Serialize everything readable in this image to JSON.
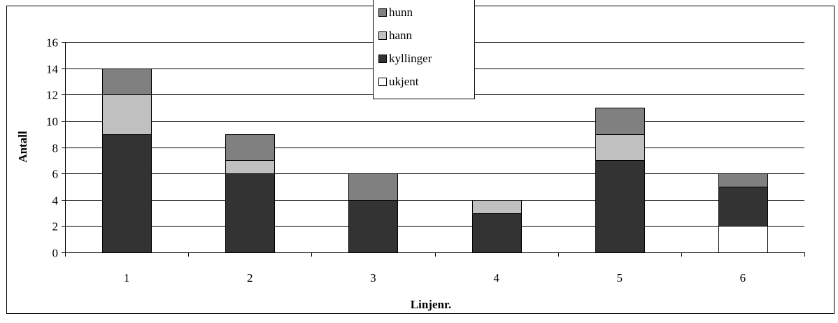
{
  "chart_data": {
    "type": "bar",
    "stacked": true,
    "categories": [
      "1",
      "2",
      "3",
      "4",
      "5",
      "6"
    ],
    "series": [
      {
        "name": "ukjent",
        "values": [
          0,
          0,
          0,
          0,
          0,
          2
        ],
        "color": "#ffffff"
      },
      {
        "name": "kyllinger",
        "values": [
          9,
          6,
          4,
          3,
          7,
          3
        ],
        "color": "#333333"
      },
      {
        "name": "hann",
        "values": [
          3,
          1,
          0,
          1,
          2,
          0
        ],
        "color": "#c0c0c0"
      },
      {
        "name": "hunn",
        "values": [
          2,
          2,
          2,
          0,
          2,
          1
        ],
        "color": "#808080"
      }
    ],
    "legend_order": [
      "hunn",
      "hann",
      "kyllinger",
      "ukjent"
    ],
    "legend_position": "top-center",
    "xlabel": "Linjenr.",
    "ylabel": "Antall",
    "ylim": [
      0,
      16
    ],
    "yticks": [
      0,
      2,
      4,
      6,
      8,
      10,
      12,
      14,
      16
    ],
    "grid": true
  }
}
